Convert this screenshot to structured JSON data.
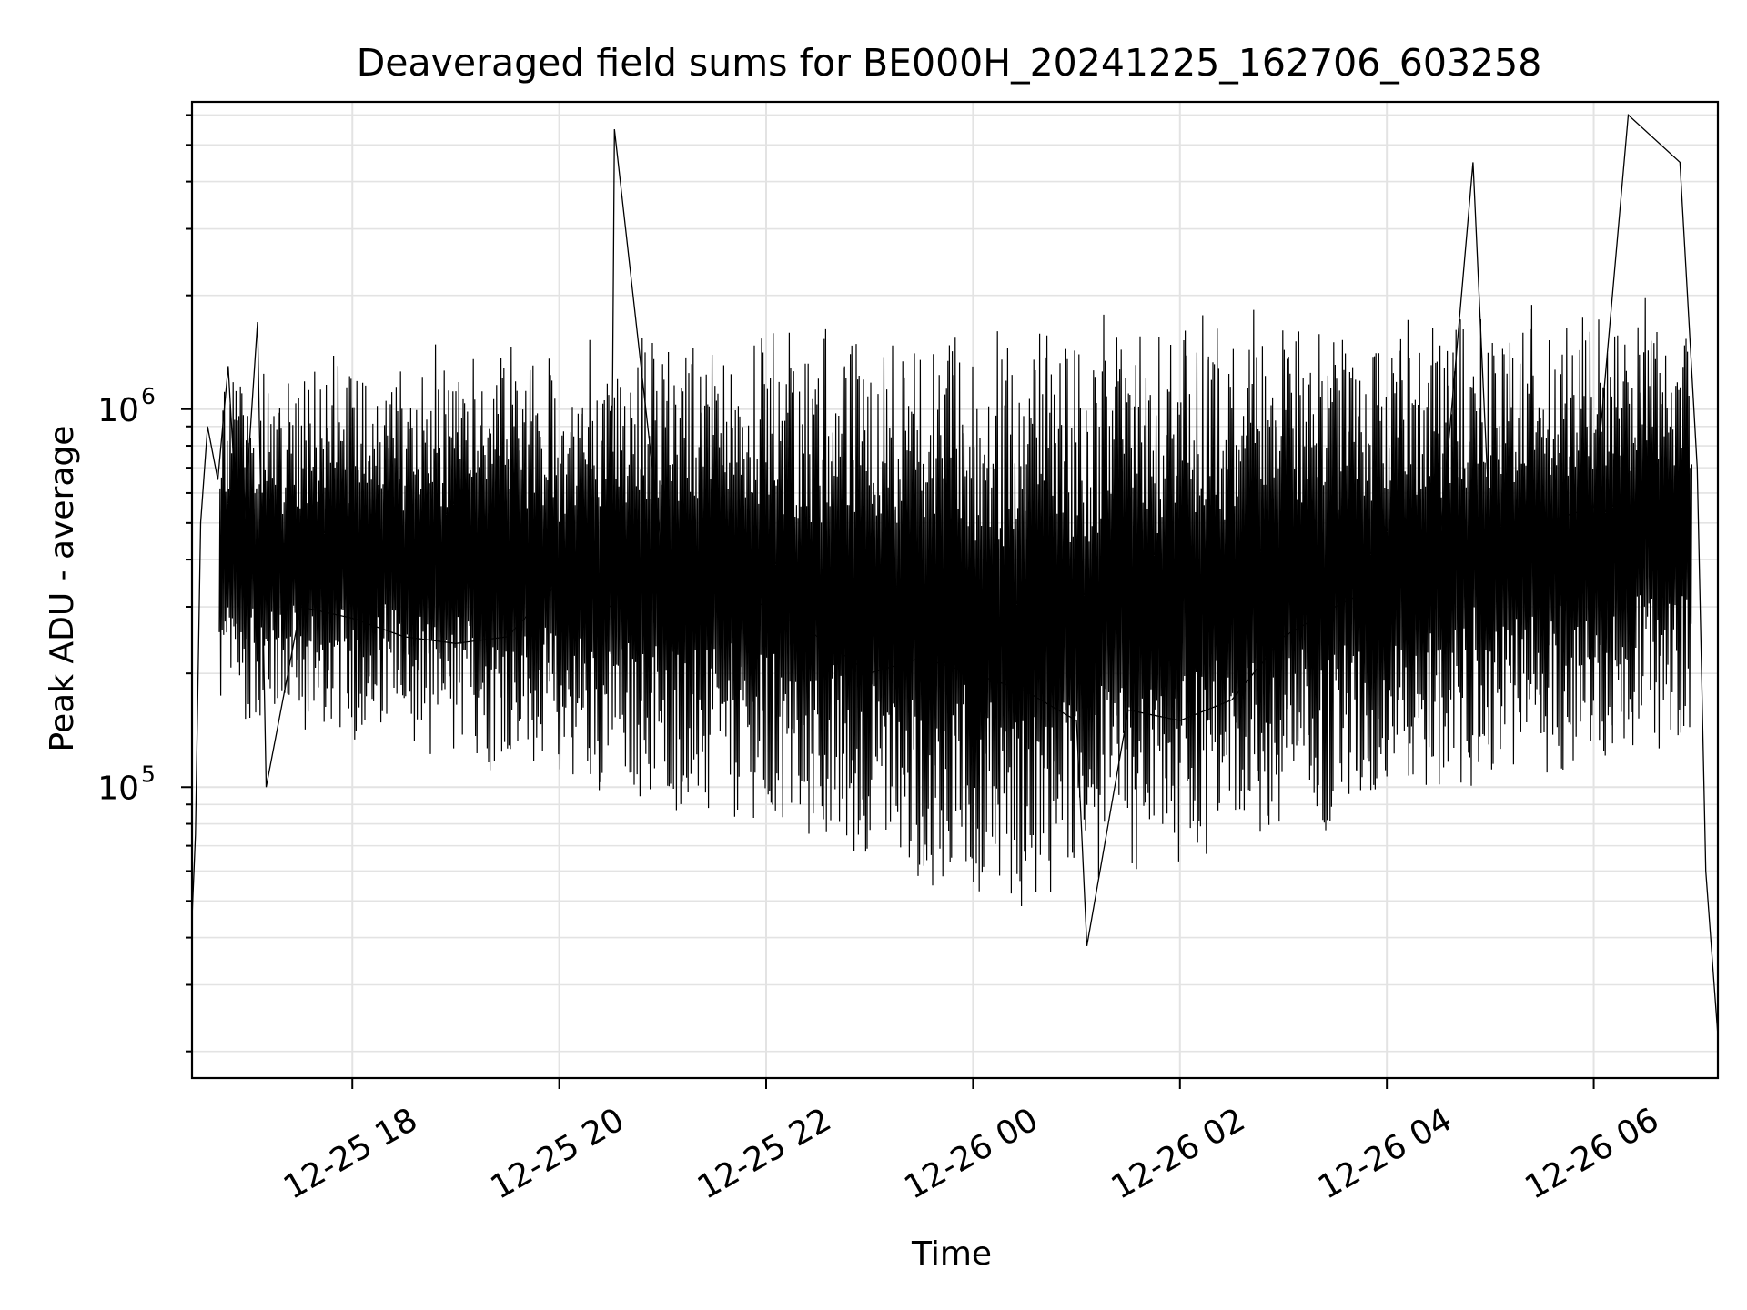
{
  "chart_data": {
    "type": "line",
    "title": "Deaveraged field sums for BE000H_20241225_162706_603258",
    "xlabel": "Time",
    "ylabel": "Peak ADU - average",
    "x_scale": "time",
    "y_scale": "log",
    "xlim": [
      "2024-12-25 16:27",
      "2024-12-26 07:12"
    ],
    "ylim": [
      17000,
      6500000
    ],
    "x_ticks": [
      {
        "value": "2024-12-25 18:00",
        "label": "12-25 18"
      },
      {
        "value": "2024-12-25 20:00",
        "label": "12-25 20"
      },
      {
        "value": "2024-12-25 22:00",
        "label": "12-25 22"
      },
      {
        "value": "2024-12-26 00:00",
        "label": "12-26 00"
      },
      {
        "value": "2024-12-26 02:00",
        "label": "12-26 02"
      },
      {
        "value": "2024-12-26 04:00",
        "label": "12-26 04"
      },
      {
        "value": "2024-12-26 06:00",
        "label": "12-26 06"
      }
    ],
    "y_ticks": [
      {
        "value": 100000,
        "base": "10",
        "exp": "5"
      },
      {
        "value": 1000000,
        "base": "10",
        "exp": "6"
      }
    ],
    "grid": true,
    "line_color": "#000000",
    "series": [
      {
        "points": [
          [
            "2024-12-25 16:27",
            45000
          ],
          [
            "2024-12-25 16:29",
            75000
          ],
          [
            "2024-12-25 16:32",
            500000
          ],
          [
            "2024-12-25 16:36",
            900000
          ],
          [
            "2024-12-25 16:42",
            650000
          ],
          [
            "2024-12-25 16:48",
            1300000
          ],
          [
            "2024-12-25 16:55",
            350000
          ],
          [
            "2024-12-25 17:05",
            1700000
          ],
          [
            "2024-12-25 17:10",
            100000
          ],
          [
            "2024-12-25 17:30",
            300000
          ],
          [
            "2024-12-25 18:00",
            280000
          ],
          [
            "2024-12-25 18:30",
            250000
          ],
          [
            "2024-12-25 19:00",
            240000
          ],
          [
            "2024-12-25 19:30",
            250000
          ],
          [
            "2024-12-25 20:00",
            350000
          ],
          [
            "2024-12-25 20:30",
            300000
          ],
          [
            "2024-12-25 20:32",
            5500000
          ],
          [
            "2024-12-25 21:00",
            400000
          ],
          [
            "2024-12-25 21:30",
            350000
          ],
          [
            "2024-12-25 22:00",
            300000
          ],
          [
            "2024-12-25 22:30",
            250000
          ],
          [
            "2024-12-25 23:00",
            200000
          ],
          [
            "2024-12-25 23:30",
            220000
          ],
          [
            "2024-12-26 00:00",
            200000
          ],
          [
            "2024-12-26 00:30",
            180000
          ],
          [
            "2024-12-26 01:00",
            150000
          ],
          [
            "2024-12-26 01:06",
            38000
          ],
          [
            "2024-12-26 01:30",
            160000
          ],
          [
            "2024-12-26 02:00",
            150000
          ],
          [
            "2024-12-26 02:30",
            170000
          ],
          [
            "2024-12-26 03:00",
            250000
          ],
          [
            "2024-12-26 03:30",
            300000
          ],
          [
            "2024-12-26 04:00",
            350000
          ],
          [
            "2024-12-26 04:30",
            400000
          ],
          [
            "2024-12-26 04:50",
            4500000
          ],
          [
            "2024-12-26 05:00",
            450000
          ],
          [
            "2024-12-26 05:30",
            500000
          ],
          [
            "2024-12-26 06:00",
            550000
          ],
          [
            "2024-12-26 06:20",
            6000000
          ],
          [
            "2024-12-26 06:50",
            4500000
          ],
          [
            "2024-12-26 07:00",
            700000
          ],
          [
            "2024-12-26 07:05",
            60000
          ],
          [
            "2024-12-26 07:12",
            22000
          ]
        ]
      }
    ]
  }
}
